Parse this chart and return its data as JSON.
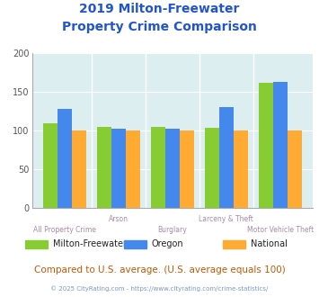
{
  "title_line1": "2019 Milton-Freewater",
  "title_line2": "Property Crime Comparison",
  "categories": [
    "All Property Crime",
    "Arson",
    "Burglary",
    "Larceny & Theft",
    "Motor Vehicle Theft"
  ],
  "series": {
    "Milton-Freewater": [
      110,
      105,
      105,
      104,
      162
    ],
    "Oregon": [
      128,
      103,
      103,
      130,
      163
    ],
    "National": [
      100,
      100,
      100,
      100,
      100
    ]
  },
  "colors": {
    "Milton-Freewater": "#88cc33",
    "Oregon": "#4488ee",
    "National": "#ffaa33"
  },
  "ylim": [
    0,
    200
  ],
  "yticks": [
    0,
    50,
    100,
    150,
    200
  ],
  "background_color": "#ddeef0",
  "title_color": "#2255cc",
  "xlabel_color": "#aa88aa",
  "legend_label_color": "#222222",
  "footer_text": "Compared to U.S. average. (U.S. average equals 100)",
  "footer_color": "#cc5500",
  "copyright_text": "© 2025 CityRating.com - https://www.cityrating.com/crime-statistics/",
  "copyright_color": "#7799cc"
}
